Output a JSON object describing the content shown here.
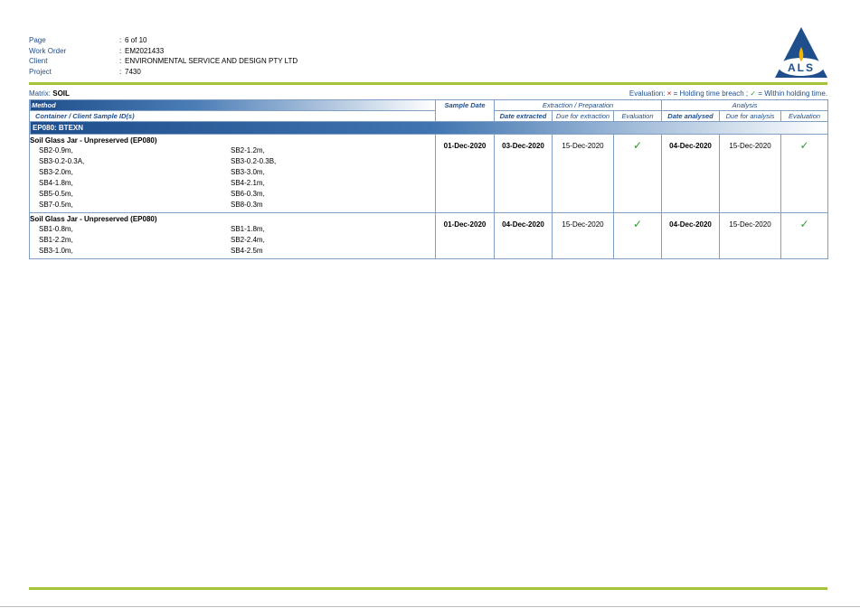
{
  "header": {
    "separator": ":",
    "fields": [
      {
        "label": "Page",
        "value": "6 of 10"
      },
      {
        "label": "Work Order",
        "value": "EM2021433"
      },
      {
        "label": "Client",
        "value": "ENVIRONMENTAL SERVICE AND DESIGN PTY LTD"
      },
      {
        "label": "Project",
        "value": "7430"
      }
    ],
    "logo": "ALS"
  },
  "matrix": {
    "label": "Matrix:",
    "value": "SOIL"
  },
  "legend": {
    "label": "Evaluation:",
    "breach_symbol": "×",
    "breach_text": "= Holding time breach ;",
    "within_symbol": "✓",
    "within_text": "= Within holding time."
  },
  "table": {
    "headers": {
      "method": "Method",
      "container": "Container / Client Sample ID(s)",
      "sample_date": "Sample Date",
      "extraction": "Extraction / Preparation",
      "date_extracted": "Date extracted",
      "due_extraction": "Due for extraction",
      "evaluation_extraction": "Evaluation",
      "analysis": "Analysis",
      "date_analysed": "Date analysed",
      "due_analysis": "Due for analysis",
      "evaluation_analysis": "Evaluation"
    },
    "section": "EP080: BTEXN",
    "groups": [
      {
        "container": "Soil Glass Jar - Unpreserved (EP080)",
        "samples": [
          "SB2-0.9m,",
          "SB2-1.2m,",
          "SB3-0.2-0.3A,",
          "SB3-0.2-0.3B,",
          "SB3-2.0m,",
          "SB3-3.0m,",
          "SB4-1.8m,",
          "SB4-2.1m,",
          "SB5-0.5m,",
          "SB6-0.3m,",
          "SB7-0.5m,",
          "SB8-0.3m"
        ],
        "sample_date": "01-Dec-2020",
        "date_extracted": "03-Dec-2020",
        "due_extraction": "15-Dec-2020",
        "evaluation_extraction": "✓",
        "date_analysed": "04-Dec-2020",
        "due_analysis": "15-Dec-2020",
        "evaluation_analysis": "✓"
      },
      {
        "container": "Soil Glass Jar - Unpreserved (EP080)",
        "samples": [
          "SB1-0.8m,",
          "SB1-1.8m,",
          "SB1-2.2m,",
          "SB2-2.4m,",
          "SB3-1.0m,",
          "SB4-2.5m"
        ],
        "sample_date": "01-Dec-2020",
        "date_extracted": "04-Dec-2020",
        "due_extraction": "15-Dec-2020",
        "evaluation_extraction": "✓",
        "date_analysed": "04-Dec-2020",
        "due_analysis": "15-Dec-2020",
        "evaluation_analysis": "✓"
      }
    ]
  }
}
